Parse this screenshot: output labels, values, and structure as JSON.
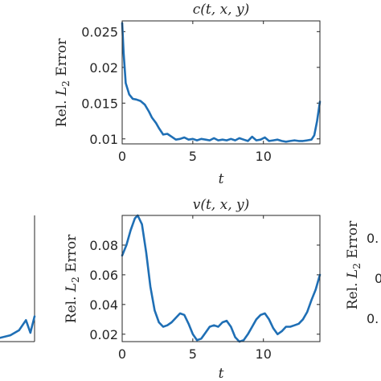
{
  "colors": {
    "series": "#1f6fb5",
    "axes": "#262626"
  },
  "ylabel_parts": {
    "prefix": "Rel. ",
    "L": "L",
    "sub": "2",
    "suffix": " Error"
  },
  "chart_data": [
    {
      "type": "line",
      "title": "c(t, x, y)",
      "xlabel": "t",
      "ylabel": "Rel. L2 Error",
      "xlim": [
        0,
        14
      ],
      "ylim": [
        0.0093,
        0.0265
      ],
      "xticks": [
        0,
        5,
        10
      ],
      "xtick_labels": [
        "0",
        "5",
        "10"
      ],
      "yticks": [
        0.01,
        0.015,
        0.02,
        0.025
      ],
      "ytick_labels": [
        "0.01",
        "0.015",
        "0.02",
        "0.025"
      ],
      "grid": false,
      "legend": "none",
      "series": [
        {
          "x": [
            0,
            0.1,
            0.25,
            0.5,
            0.75,
            1.0,
            1.3,
            1.6,
            1.9,
            2.1,
            2.4,
            2.6,
            2.9,
            3.2,
            3.5,
            3.8,
            4.1,
            4.4,
            4.7,
            5.0,
            5.3,
            5.6,
            5.9,
            6.2,
            6.5,
            6.8,
            7.1,
            7.4,
            7.7,
            8.0,
            8.3,
            8.6,
            8.9,
            9.2,
            9.5,
            9.8,
            10.1,
            10.4,
            10.7,
            11.0,
            11.3,
            11.6,
            11.9,
            12.2,
            12.5,
            12.8,
            13.1,
            13.4,
            13.6,
            13.8,
            14.0
          ],
          "y": [
            0.0262,
            0.022,
            0.0178,
            0.0162,
            0.0156,
            0.0155,
            0.0153,
            0.0148,
            0.0138,
            0.013,
            0.0122,
            0.0115,
            0.0106,
            0.0107,
            0.0103,
            0.0099,
            0.01,
            0.0102,
            0.0099,
            0.01,
            0.0098,
            0.01,
            0.0099,
            0.0098,
            0.0101,
            0.0098,
            0.0099,
            0.0098,
            0.01,
            0.0098,
            0.0101,
            0.0099,
            0.0097,
            0.0103,
            0.0098,
            0.0099,
            0.0102,
            0.0097,
            0.0098,
            0.0099,
            0.0097,
            0.0096,
            0.0097,
            0.0098,
            0.0097,
            0.0097,
            0.0098,
            0.0099,
            0.0105,
            0.0125,
            0.0152
          ]
        }
      ]
    },
    {
      "type": "line",
      "title": "v(t, x, y)",
      "xlabel": "t",
      "ylabel": "Rel. L2 Error",
      "xlim": [
        0,
        14
      ],
      "ylim": [
        0.015,
        0.1
      ],
      "xticks": [
        0,
        5,
        10
      ],
      "xtick_labels": [
        "0",
        "5",
        "10"
      ],
      "yticks": [
        0.02,
        0.04,
        0.06,
        0.08
      ],
      "ytick_labels": [
        "0.02",
        "0.04",
        "0.06",
        "0.08"
      ],
      "grid": false,
      "legend": "none",
      "series": [
        {
          "x": [
            0,
            0.3,
            0.6,
            0.9,
            1.1,
            1.4,
            1.7,
            2.0,
            2.3,
            2.6,
            2.9,
            3.2,
            3.5,
            3.8,
            4.1,
            4.4,
            4.7,
            5.0,
            5.3,
            5.6,
            5.9,
            6.2,
            6.5,
            6.8,
            7.1,
            7.4,
            7.7,
            8.0,
            8.3,
            8.6,
            8.9,
            9.2,
            9.5,
            9.8,
            10.1,
            10.4,
            10.7,
            11.0,
            11.3,
            11.6,
            11.9,
            12.2,
            12.5,
            12.8,
            13.1,
            13.4,
            13.7,
            14.0
          ],
          "y": [
            0.073,
            0.08,
            0.09,
            0.098,
            0.1,
            0.094,
            0.075,
            0.052,
            0.036,
            0.028,
            0.025,
            0.026,
            0.028,
            0.031,
            0.034,
            0.033,
            0.027,
            0.02,
            0.016,
            0.017,
            0.021,
            0.025,
            0.026,
            0.025,
            0.028,
            0.029,
            0.025,
            0.018,
            0.015,
            0.016,
            0.02,
            0.025,
            0.03,
            0.033,
            0.034,
            0.03,
            0.024,
            0.02,
            0.022,
            0.025,
            0.025,
            0.026,
            0.027,
            0.03,
            0.035,
            0.043,
            0.05,
            0.06
          ]
        }
      ]
    }
  ],
  "partial_panels": {
    "left_edge": {
      "series_x": [
        0,
        0.3,
        0.55,
        0.75,
        0.88,
        1.0
      ],
      "series_y_frac": [
        0.03,
        0.05,
        0.09,
        0.17,
        0.07,
        0.2
      ]
    },
    "right_edge": {
      "ytick_fragments": [
        "0.",
        "0",
        "0."
      ]
    }
  }
}
